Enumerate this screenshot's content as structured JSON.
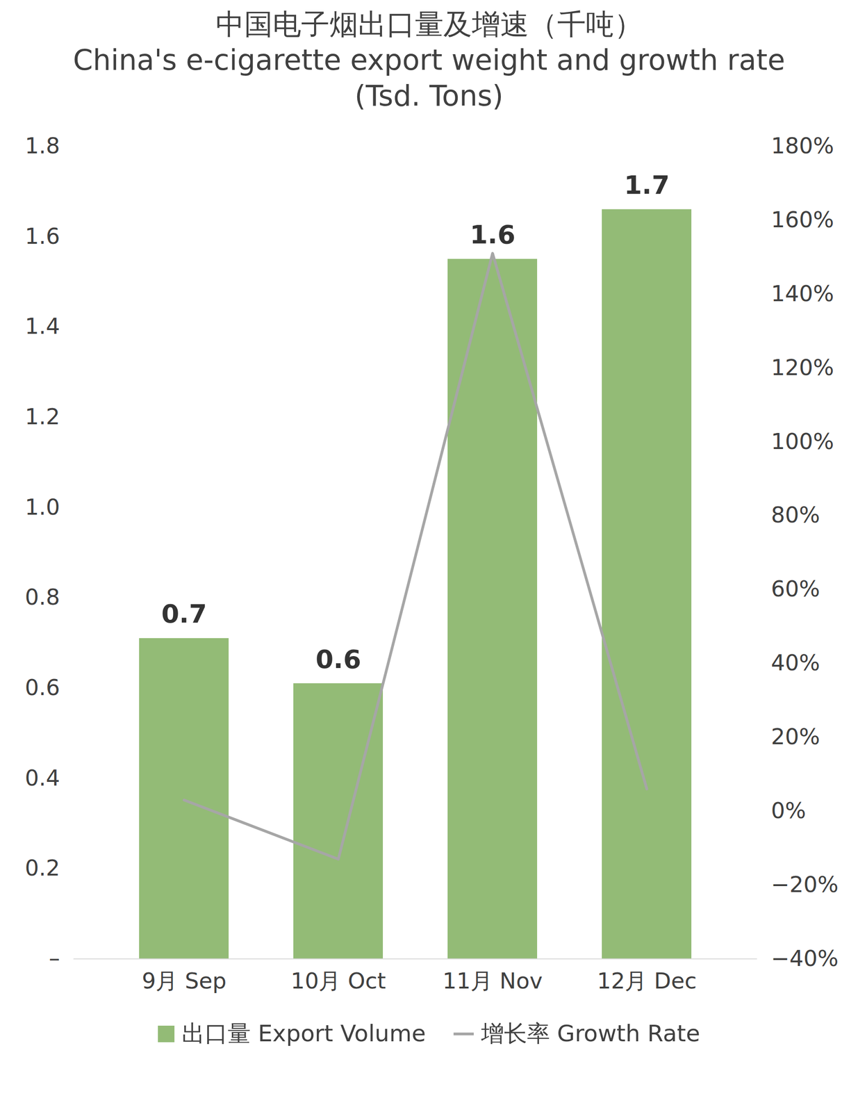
{
  "chart_data": {
    "type": "bar",
    "title": "中国电子烟出口量及增速（千吨）",
    "subtitle": "China's e-cigarette export weight and growth rate (Tsd. Tons)",
    "categories": [
      "9月 Sep",
      "10月 Oct",
      "11月 Nov",
      "12月 Dec"
    ],
    "series": [
      {
        "name": "出口量 Export Volume",
        "type": "bar",
        "color": "#93bb76",
        "values": [
          0.71,
          0.61,
          1.55,
          1.66
        ],
        "value_labels": [
          "0.7",
          "0.6",
          "1.6",
          "1.7"
        ]
      },
      {
        "name": "增长率 Growth Rate",
        "type": "line",
        "axis": "y2",
        "color": "#a6a6a6",
        "values": [
          3,
          -13,
          151,
          6
        ]
      }
    ],
    "ylim": [
      0,
      1.8
    ],
    "yticks": [
      {
        "value": 0,
        "label": "–"
      },
      0.2,
      0.4,
      0.6,
      0.8,
      {
        "value": 1,
        "label": "1.0"
      },
      1.2,
      1.4,
      1.6,
      1.8
    ],
    "y2lim": [
      -40,
      180
    ],
    "y2ticks": [
      {
        "value": -40,
        "label": "−40%"
      },
      {
        "value": -20,
        "label": "−20%"
      },
      {
        "value": 0,
        "label": "0%"
      },
      {
        "value": 20,
        "label": "20%"
      },
      {
        "value": 40,
        "label": "40%"
      },
      {
        "value": 60,
        "label": "60%"
      },
      {
        "value": 80,
        "label": "80%"
      },
      {
        "value": 100,
        "label": "100%"
      },
      {
        "value": 120,
        "label": "120%"
      },
      {
        "value": 140,
        "label": "140%"
      },
      {
        "value": 160,
        "label": "160%"
      },
      {
        "value": 180,
        "label": "180%"
      }
    ],
    "data_labels": true,
    "grid": false,
    "legend": "bottom"
  }
}
